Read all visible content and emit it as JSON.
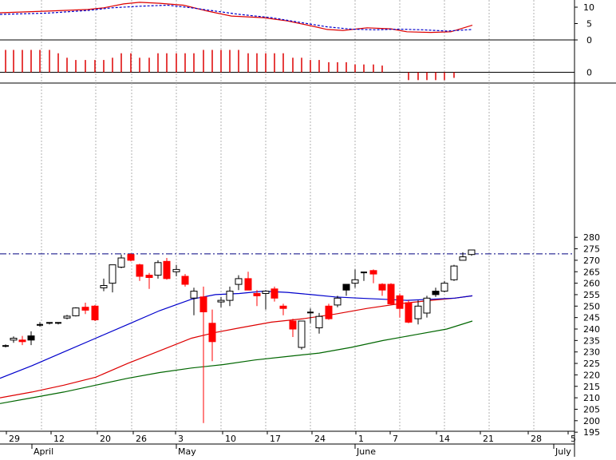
{
  "chart_data": {
    "type": "candlestick",
    "colors": {
      "up_body": "#ffffff",
      "down_body": "#ff0000",
      "black_body": "#000000",
      "ma_fast": "#0000cc",
      "ma_mid": "#dd0000",
      "ma_slow": "#006600",
      "cross_line": "#000080",
      "macd_line": "#dd0000",
      "signal_line": "#0000cc",
      "hist_pos": "#dd0000",
      "hist_neg": "#dd0000",
      "grid": "#b0b0b0"
    },
    "price_axis": {
      "ylim": [
        191,
        282
      ],
      "ticks": [
        "195",
        "200",
        "205",
        "210",
        "215",
        "220",
        "225",
        "230",
        "235",
        "240",
        "245",
        "250",
        "255",
        "260",
        "265",
        "270",
        "275",
        "280"
      ]
    },
    "macd_axis": {
      "ylim": [
        -2,
        13
      ],
      "ticks": [
        "10",
        "5",
        "0"
      ]
    },
    "hist_axis": {
      "ticks": [
        "0"
      ]
    },
    "x_axis": {
      "day_labels": [
        "29",
        "12",
        "20",
        "26",
        "3",
        "10",
        "17",
        "24",
        "1",
        "7",
        "14",
        "21",
        "28",
        "5"
      ],
      "month_labels": [
        "April",
        "May",
        "June",
        "July"
      ]
    },
    "horizontal_line": 272.8,
    "candles": [
      {
        "x": 7,
        "o": 232.5,
        "h": 233.3,
        "l": 232.0,
        "c": 232.6,
        "t": "tick"
      },
      {
        "x": 17,
        "o": 235.2,
        "h": 236.8,
        "l": 234.0,
        "c": 236.0,
        "t": "up"
      },
      {
        "x": 28,
        "o": 235.2,
        "h": 237.0,
        "l": 233.0,
        "c": 234.6,
        "t": "down"
      },
      {
        "x": 39,
        "o": 237.0,
        "h": 239.0,
        "l": 233.0,
        "c": 235.2,
        "t": "black"
      },
      {
        "x": 50,
        "o": 241.5,
        "h": 243.0,
        "l": 241.0,
        "c": 241.8,
        "t": "tick"
      },
      {
        "x": 62,
        "o": 242.5,
        "h": 243.0,
        "l": 242.0,
        "c": 242.7,
        "t": "tick"
      },
      {
        "x": 73,
        "o": 242.5,
        "h": 243.0,
        "l": 242.0,
        "c": 242.7,
        "t": "tick"
      },
      {
        "x": 84,
        "o": 244.8,
        "h": 246.2,
        "l": 244.2,
        "c": 245.6,
        "t": "up"
      },
      {
        "x": 95,
        "o": 245.8,
        "h": 249.5,
        "l": 245.5,
        "c": 249.2,
        "t": "up"
      },
      {
        "x": 107,
        "o": 249.5,
        "h": 251.5,
        "l": 246.5,
        "c": 248.2,
        "t": "down"
      },
      {
        "x": 119,
        "o": 250.0,
        "h": 250.5,
        "l": 243.5,
        "c": 244.0,
        "t": "down"
      },
      {
        "x": 130,
        "o": 258.0,
        "h": 262.0,
        "l": 256.5,
        "c": 259.0,
        "t": "up"
      },
      {
        "x": 141,
        "o": 260.0,
        "h": 268.0,
        "l": 256.0,
        "c": 268.0,
        "t": "up"
      },
      {
        "x": 152,
        "o": 267.0,
        "h": 272.5,
        "l": 266.5,
        "c": 271.0,
        "t": "up"
      },
      {
        "x": 164,
        "o": 272.5,
        "h": 273.0,
        "l": 269.5,
        "c": 270.0,
        "t": "down"
      },
      {
        "x": 175,
        "o": 268.0,
        "h": 268.5,
        "l": 261.0,
        "c": 263.0,
        "t": "down"
      },
      {
        "x": 187,
        "o": 263.5,
        "h": 264.5,
        "l": 257.5,
        "c": 262.5,
        "t": "down"
      },
      {
        "x": 198,
        "o": 263.5,
        "h": 270.0,
        "l": 262.0,
        "c": 269.0,
        "t": "up"
      },
      {
        "x": 209,
        "o": 269.5,
        "h": 271.0,
        "l": 261.5,
        "c": 262.0,
        "t": "down"
      },
      {
        "x": 221,
        "o": 266.0,
        "h": 268.0,
        "l": 263.0,
        "c": 265.0,
        "t": "up"
      },
      {
        "x": 232,
        "o": 263.0,
        "h": 264.0,
        "l": 258.5,
        "c": 259.5,
        "t": "down"
      },
      {
        "x": 243,
        "o": 253.5,
        "h": 258.0,
        "l": 246.0,
        "c": 256.5,
        "t": "up"
      },
      {
        "x": 255,
        "o": 254.0,
        "h": 258.5,
        "l": 199.0,
        "c": 247.5,
        "t": "down"
      },
      {
        "x": 266,
        "o": 242.5,
        "h": 248.5,
        "l": 226.0,
        "c": 234.5,
        "t": "down"
      },
      {
        "x": 277,
        "o": 252.0,
        "h": 254.0,
        "l": 249.5,
        "c": 252.5,
        "t": "up"
      },
      {
        "x": 288,
        "o": 252.5,
        "h": 258.5,
        "l": 250.0,
        "c": 256.5,
        "t": "up"
      },
      {
        "x": 299,
        "o": 259.5,
        "h": 263.5,
        "l": 257.0,
        "c": 262.0,
        "t": "up"
      },
      {
        "x": 311,
        "o": 262.0,
        "h": 265.0,
        "l": 257.0,
        "c": 257.0,
        "t": "down"
      },
      {
        "x": 322,
        "o": 255.5,
        "h": 257.0,
        "l": 250.0,
        "c": 254.5,
        "t": "down"
      },
      {
        "x": 333,
        "o": 256.5,
        "h": 257.0,
        "l": 248.5,
        "c": 255.5,
        "t": "up"
      },
      {
        "x": 344,
        "o": 257.5,
        "h": 258.5,
        "l": 252.0,
        "c": 253.5,
        "t": "down"
      },
      {
        "x": 355,
        "o": 250.0,
        "h": 251.0,
        "l": 246.0,
        "c": 249.0,
        "t": "down"
      },
      {
        "x": 367,
        "o": 243.5,
        "h": 244.5,
        "l": 236.5,
        "c": 240.0,
        "t": "down"
      },
      {
        "x": 378,
        "o": 232.0,
        "h": 243.5,
        "l": 231.0,
        "c": 243.5,
        "t": "up"
      },
      {
        "x": 389,
        "o": 247.0,
        "h": 249.0,
        "l": 242.5,
        "c": 247.2,
        "t": "tick"
      },
      {
        "x": 400,
        "o": 240.5,
        "h": 247.0,
        "l": 238.0,
        "c": 245.5,
        "t": "up"
      },
      {
        "x": 412,
        "o": 250.0,
        "h": 251.0,
        "l": 244.0,
        "c": 244.5,
        "t": "down"
      },
      {
        "x": 423,
        "o": 250.5,
        "h": 254.5,
        "l": 249.5,
        "c": 253.5,
        "t": "up"
      },
      {
        "x": 434,
        "o": 257.0,
        "h": 259.5,
        "l": 254.5,
        "c": 259.5,
        "t": "black"
      },
      {
        "x": 445,
        "o": 260.0,
        "h": 266.0,
        "l": 258.0,
        "c": 261.5,
        "t": "up"
      },
      {
        "x": 456,
        "o": 264.5,
        "h": 265.0,
        "l": 261.0,
        "c": 264.7,
        "t": "tick"
      },
      {
        "x": 468,
        "o": 265.5,
        "h": 266.0,
        "l": 260.0,
        "c": 264.0,
        "t": "down"
      },
      {
        "x": 479,
        "o": 259.5,
        "h": 260.0,
        "l": 254.5,
        "c": 257.0,
        "t": "down"
      },
      {
        "x": 490,
        "o": 259.5,
        "h": 260.0,
        "l": 250.5,
        "c": 251.0,
        "t": "down"
      },
      {
        "x": 501,
        "o": 254.5,
        "h": 255.5,
        "l": 245.0,
        "c": 249.0,
        "t": "down"
      },
      {
        "x": 512,
        "o": 251.5,
        "h": 252.5,
        "l": 242.5,
        "c": 243.0,
        "t": "down"
      },
      {
        "x": 524,
        "o": 244.5,
        "h": 252.5,
        "l": 242.0,
        "c": 250.0,
        "t": "up"
      },
      {
        "x": 535,
        "o": 247.0,
        "h": 254.5,
        "l": 245.0,
        "c": 253.5,
        "t": "up"
      },
      {
        "x": 546,
        "o": 255.0,
        "h": 258.0,
        "l": 254.0,
        "c": 256.5,
        "t": "black"
      },
      {
        "x": 557,
        "o": 256.5,
        "h": 261.0,
        "l": 256.0,
        "c": 260.0,
        "t": "up"
      },
      {
        "x": 569,
        "o": 261.5,
        "h": 268.0,
        "l": 261.0,
        "c": 267.5,
        "t": "up"
      },
      {
        "x": 580,
        "o": 270.0,
        "h": 273.5,
        "l": 270.0,
        "c": 271.5,
        "t": "up"
      },
      {
        "x": 591,
        "o": 272.5,
        "h": 274.5,
        "l": 272.0,
        "c": 274.5,
        "t": "up"
      }
    ],
    "ma_fast": [
      [
        0,
        218.5
      ],
      [
        40,
        224
      ],
      [
        80,
        230
      ],
      [
        120,
        236
      ],
      [
        160,
        242
      ],
      [
        200,
        248
      ],
      [
        240,
        253
      ],
      [
        270,
        255
      ],
      [
        300,
        255.5
      ],
      [
        330,
        256.5
      ],
      [
        360,
        256
      ],
      [
        390,
        255
      ],
      [
        420,
        254
      ],
      [
        450,
        253.5
      ],
      [
        480,
        253
      ],
      [
        510,
        252.5
      ],
      [
        540,
        253
      ],
      [
        570,
        253.5
      ],
      [
        592,
        254.5
      ]
    ],
    "ma_mid": [
      [
        0,
        210
      ],
      [
        40,
        212.5
      ],
      [
        80,
        215.5
      ],
      [
        120,
        219
      ],
      [
        160,
        225
      ],
      [
        200,
        230.5
      ],
      [
        240,
        236
      ],
      [
        270,
        238.5
      ],
      [
        300,
        240.5
      ],
      [
        340,
        243
      ],
      [
        380,
        244.5
      ],
      [
        420,
        246.5
      ],
      [
        460,
        249
      ],
      [
        500,
        251
      ],
      [
        540,
        252.5
      ],
      [
        570,
        253.5
      ],
      [
        592,
        254.5
      ]
    ],
    "ma_slow": [
      [
        0,
        207.5
      ],
      [
        40,
        210
      ],
      [
        80,
        212.5
      ],
      [
        120,
        215.5
      ],
      [
        160,
        218.5
      ],
      [
        200,
        221
      ],
      [
        240,
        223
      ],
      [
        280,
        224.5
      ],
      [
        320,
        226.5
      ],
      [
        360,
        228
      ],
      [
        400,
        229.5
      ],
      [
        440,
        232
      ],
      [
        480,
        235
      ],
      [
        520,
        237.5
      ],
      [
        560,
        240
      ],
      [
        592,
        243.5
      ]
    ],
    "macd_line": [
      [
        0,
        8.3
      ],
      [
        60,
        8.8
      ],
      [
        110,
        9.3
      ],
      [
        130,
        9.8
      ],
      [
        155,
        11.0
      ],
      [
        175,
        11.5
      ],
      [
        200,
        11.2
      ],
      [
        230,
        10.6
      ],
      [
        260,
        8.8
      ],
      [
        290,
        7.3
      ],
      [
        330,
        6.8
      ],
      [
        360,
        5.8
      ],
      [
        390,
        4.3
      ],
      [
        410,
        3.2
      ],
      [
        430,
        2.9
      ],
      [
        460,
        3.7
      ],
      [
        490,
        3.4
      ],
      [
        510,
        2.5
      ],
      [
        540,
        2.3
      ],
      [
        565,
        2.5
      ],
      [
        592,
        4.5
      ]
    ],
    "signal_line": [
      [
        0,
        7.8
      ],
      [
        60,
        8.2
      ],
      [
        110,
        9.0
      ],
      [
        140,
        9.8
      ],
      [
        175,
        10.3
      ],
      [
        210,
        10.6
      ],
      [
        240,
        9.8
      ],
      [
        270,
        8.8
      ],
      [
        300,
        7.8
      ],
      [
        340,
        6.8
      ],
      [
        380,
        5.2
      ],
      [
        410,
        4.0
      ],
      [
        440,
        3.3
      ],
      [
        470,
        3.1
      ],
      [
        500,
        3.3
      ],
      [
        530,
        3.1
      ],
      [
        560,
        2.7
      ],
      [
        592,
        3.2
      ]
    ],
    "histogram": [
      [
        7,
        1.0
      ],
      [
        17,
        1.0
      ],
      [
        28,
        1.0
      ],
      [
        39,
        1.0
      ],
      [
        50,
        1.0
      ],
      [
        62,
        1.0
      ],
      [
        73,
        0.85
      ],
      [
        84,
        0.65
      ],
      [
        95,
        0.55
      ],
      [
        107,
        0.55
      ],
      [
        119,
        0.55
      ],
      [
        130,
        0.55
      ],
      [
        141,
        0.65
      ],
      [
        152,
        0.85
      ],
      [
        164,
        0.85
      ],
      [
        175,
        0.65
      ],
      [
        187,
        0.65
      ],
      [
        198,
        0.85
      ],
      [
        209,
        0.85
      ],
      [
        221,
        0.85
      ],
      [
        232,
        0.85
      ],
      [
        243,
        0.85
      ],
      [
        255,
        1.0
      ],
      [
        266,
        1.0
      ],
      [
        277,
        1.0
      ],
      [
        288,
        1.0
      ],
      [
        299,
        1.0
      ],
      [
        311,
        0.85
      ],
      [
        322,
        0.85
      ],
      [
        333,
        0.85
      ],
      [
        344,
        0.85
      ],
      [
        355,
        0.85
      ],
      [
        367,
        0.65
      ],
      [
        378,
        0.65
      ],
      [
        389,
        0.55
      ],
      [
        400,
        0.55
      ],
      [
        412,
        0.45
      ],
      [
        423,
        0.45
      ],
      [
        434,
        0.45
      ],
      [
        445,
        0.35
      ],
      [
        456,
        0.35
      ],
      [
        468,
        0.35
      ],
      [
        479,
        0.3
      ],
      [
        490,
        0.0
      ],
      [
        501,
        0.0
      ],
      [
        512,
        -0.35
      ],
      [
        524,
        -0.35
      ],
      [
        535,
        -0.35
      ],
      [
        546,
        -0.35
      ],
      [
        557,
        -0.35
      ],
      [
        569,
        -0.25
      ],
      [
        580,
        0.0
      ],
      [
        591,
        0.0
      ]
    ]
  }
}
